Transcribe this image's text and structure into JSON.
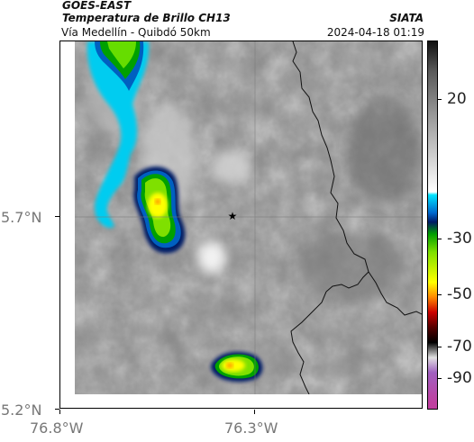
{
  "header": {
    "satellite": "GOES-EAST",
    "product": "Temperatura de Brillo CH13",
    "route": "Vía Medellín - Quibdó 50km",
    "agency": "SIATA",
    "timestamp": "2024-04-18 01:19"
  },
  "map": {
    "lat_labels": [
      "5.7°N",
      "5.2°N"
    ],
    "lon_labels": [
      "76.8°W",
      "76.3°W"
    ],
    "marker": "star-icon"
  },
  "colorbar": {
    "labels": [
      "20",
      "-30",
      "-50",
      "-70",
      "-90"
    ],
    "stops": [
      {
        "v": 30,
        "color": "#111111"
      },
      {
        "v": 20,
        "color": "#5a5a5a"
      },
      {
        "v": 5,
        "color": "#9a9a9a"
      },
      {
        "v": -20,
        "color": "#ffffff"
      },
      {
        "v": -21,
        "color": "#00e5ff"
      },
      {
        "v": -27,
        "color": "#0066cc"
      },
      {
        "v": -30,
        "color": "#001a66"
      },
      {
        "v": -34,
        "color": "#00a000"
      },
      {
        "v": -40,
        "color": "#7fe000"
      },
      {
        "v": -50,
        "color": "#ffff00"
      },
      {
        "v": -55,
        "color": "#ff8800"
      },
      {
        "v": -60,
        "color": "#cc0000"
      },
      {
        "v": -65,
        "color": "#550000"
      },
      {
        "v": -70,
        "color": "#000000"
      },
      {
        "v": -75,
        "color": "#e0e0e0"
      },
      {
        "v": -80,
        "color": "#a060c0"
      },
      {
        "v": -90,
        "color": "#c040a0"
      }
    ]
  }
}
